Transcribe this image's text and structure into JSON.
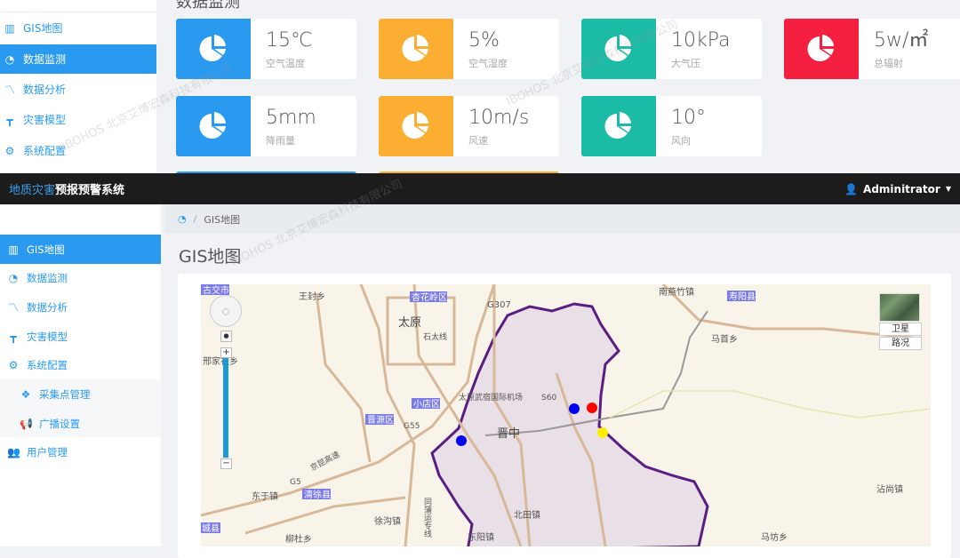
{
  "top_view": {
    "page_title": "数据监测",
    "sidebar": [
      {
        "label": "GIS地图",
        "icon": "map-icon"
      },
      {
        "label": "数据监测",
        "icon": "dashboard-icon",
        "active": true
      },
      {
        "label": "数据分析",
        "icon": "line-chart-icon"
      },
      {
        "label": "灾害模型",
        "icon": "model-icon"
      },
      {
        "label": "系统配置",
        "icon": "gears-icon"
      }
    ],
    "cards": [
      {
        "value": "15℃",
        "label": "空气温度",
        "color": "#2a9af0"
      },
      {
        "value": "5%",
        "label": "空气湿度",
        "color": "#fbae32"
      },
      {
        "value": "10kPa",
        "label": "大气压",
        "color": "#1bbba6"
      },
      {
        "value": "5w/㎡",
        "label": "总辐射",
        "color": "#f5203f"
      },
      {
        "value": "5mm",
        "label": "降雨量",
        "color": "#2a9af0"
      },
      {
        "value": "10m/s",
        "label": "风速",
        "color": "#fbae32"
      },
      {
        "value": "10°",
        "label": "风向",
        "color": "#1bbba6"
      }
    ]
  },
  "header": {
    "brand_part1": "地质灾害",
    "brand_part2": "预报预警系统",
    "user": "Adminitrator"
  },
  "sidebar": [
    {
      "label": "GIS地图",
      "icon": "map-icon",
      "active": true
    },
    {
      "label": "数据监测",
      "icon": "dashboard-icon"
    },
    {
      "label": "数据分析",
      "icon": "line-chart-icon"
    },
    {
      "label": "灾害模型",
      "icon": "model-icon"
    },
    {
      "label": "系统配置",
      "icon": "gears-icon"
    },
    {
      "label": "采集点管理",
      "icon": "cubes-icon",
      "sub": true
    },
    {
      "label": "广播设置",
      "icon": "bullhorn-icon",
      "sub": true
    },
    {
      "label": "用户管理",
      "icon": "users-icon"
    }
  ],
  "breadcrumb": {
    "current": "GIS地图"
  },
  "page_title": "GIS地图",
  "map": {
    "type_buttons": {
      "satellite": "卫星",
      "traffic": "路况"
    },
    "labels": {
      "gujiao": "古交市",
      "wangfeng": "王封乡",
      "xinghualing": "杏花岭区",
      "taiyuan": "太原",
      "g307": "G307",
      "shitai": "石太线",
      "xingjia": "邢家社乡",
      "airport": "太原武宿国际机场",
      "s60": "S60",
      "xiaodian": "小店区",
      "jinyuan": "晋源区",
      "g55": "G55",
      "jinzhong": "晋中",
      "xiangkun": "京昆高速",
      "g5": "G5",
      "dongyu": "东于镇",
      "qingxu": "清徐县",
      "xugou": "徐沟镇",
      "beitian": "北田镇",
      "dongyang": "东阳镇",
      "liudu": "柳杜乡",
      "chengxian": "城县",
      "nanyan": "南燕竹镇",
      "shouyang": "寿阳县",
      "mashou": "马首乡",
      "zhanshang": "沾尚镇",
      "mafang": "马坊乡",
      "tongpu": "同蒲运专线"
    },
    "markers": [
      {
        "color": "#0000ee"
      },
      {
        "color": "#0000ee"
      },
      {
        "color": "#ff0000"
      },
      {
        "color": "#ffee00"
      }
    ],
    "region_border_color": "#5a1e82"
  },
  "watermark": {
    "logo": "IBOHOS",
    "text": "北京艾博宏森科技有限公司"
  }
}
